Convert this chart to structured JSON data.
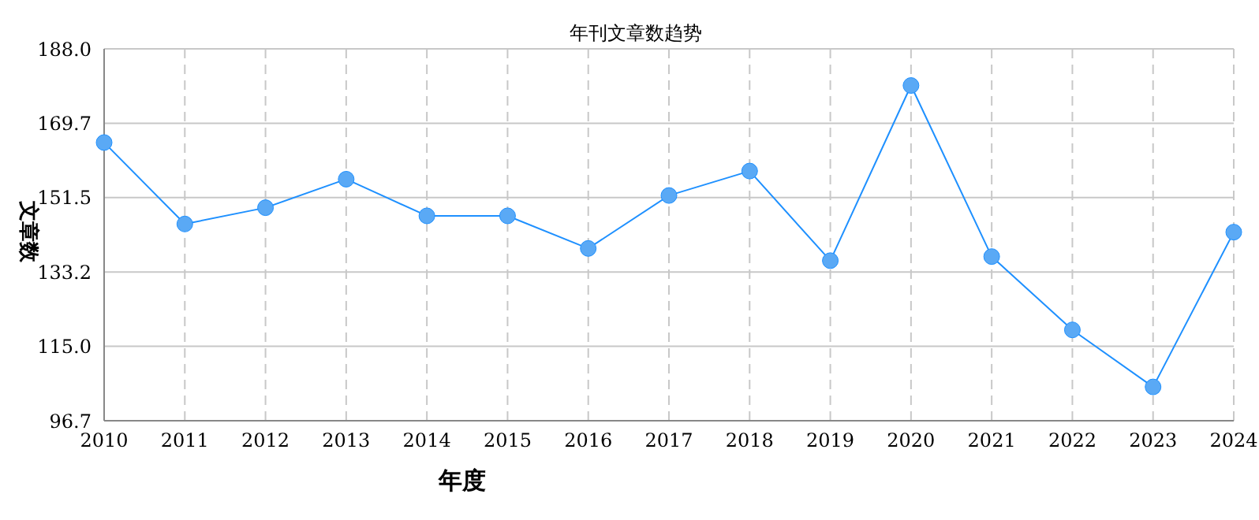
{
  "chart_data": {
    "type": "line",
    "title": "年刊文章数趋势",
    "xlabel": "年度",
    "ylabel": "文章数",
    "categories": [
      "2010",
      "2011",
      "2012",
      "2013",
      "2014",
      "2015",
      "2016",
      "2017",
      "2018",
      "2019",
      "2020",
      "2021",
      "2022",
      "2023",
      "2024"
    ],
    "series": [
      {
        "color": "#1e90ff",
        "values": [
          165,
          145,
          149,
          156,
          147,
          147,
          139,
          152,
          158,
          136,
          179,
          137,
          119,
          105,
          143
        ]
      }
    ],
    "ylim": [
      96.7,
      188.0
    ],
    "yticks": [
      96.7,
      {
        "value": 115.0,
        "label": "115.0"
      },
      133.2,
      151.5,
      169.7,
      {
        "value": 188.0,
        "label": "188.0"
      }
    ],
    "grid": true,
    "marker": "circle",
    "line_style": "solid"
  }
}
